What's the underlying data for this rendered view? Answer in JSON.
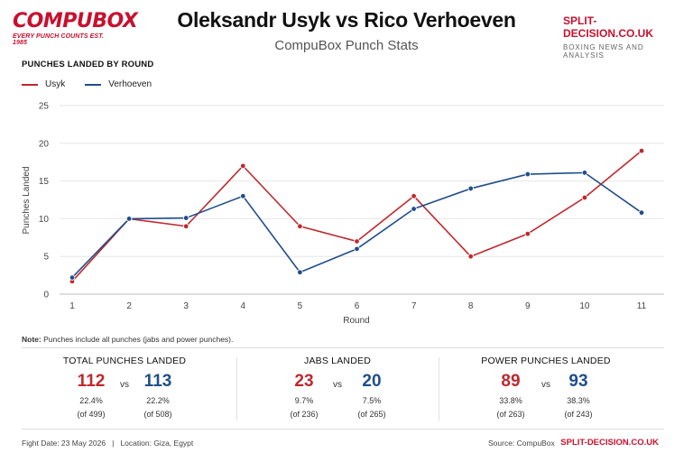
{
  "header": {
    "logo_text": "COMPUBOX",
    "logo_tagline": "EVERY PUNCH COUNTS  EST. 1985",
    "title": "Oleksandr Usyk vs Rico Verhoeven",
    "subtitle": "CompuBox Punch Stats",
    "site_name": "SPLIT-DECISION.CO.UK",
    "site_tagline": "BOXING NEWS AND ANALYSIS"
  },
  "colors": {
    "usyk": "#c0282d",
    "verhoeven": "#1f4e8c",
    "brand": "#c8102e"
  },
  "chart_heading": "PUNCHES LANDED BY ROUND",
  "chart_data": {
    "type": "line",
    "x": [
      1,
      2,
      3,
      4,
      5,
      6,
      7,
      8,
      9,
      10,
      11
    ],
    "series": [
      {
        "name": "Usyk",
        "values": [
          1.7,
          10,
          9,
          17,
          9,
          7,
          13,
          5,
          8,
          12.8,
          19
        ]
      },
      {
        "name": "Verhoeven",
        "values": [
          2.2,
          10,
          10.1,
          13,
          2.9,
          6,
          11.3,
          14,
          15.9,
          16.1,
          10.8
        ]
      }
    ],
    "xlabel": "Round",
    "ylabel": "Punches Landed",
    "ylim": [
      0,
      25
    ],
    "yticks": [
      0,
      5,
      10,
      15,
      20,
      25
    ],
    "grid": "horizontal",
    "legend": "top-left"
  },
  "note": {
    "label": "Note:",
    "text": " Punches include all punches (jabs and power punches)."
  },
  "stats": {
    "vs_label": "vs",
    "total": {
      "title": "TOTAL PUNCHES LANDED",
      "usyk": "112",
      "verhoeven": "113",
      "usyk_pct": "22.4%",
      "verhoeven_pct": "22.2%",
      "usyk_of": "(of 499)",
      "verhoeven_of": "(of 508)"
    },
    "jabs": {
      "title": "JABS LANDED",
      "usyk": "23",
      "verhoeven": "20",
      "usyk_pct": "9.7%",
      "verhoeven_pct": "7.5%",
      "usyk_of": "(of 236)",
      "verhoeven_of": "(of 265)"
    },
    "power": {
      "title": "POWER PUNCHES LANDED",
      "usyk": "89",
      "verhoeven": "93",
      "usyk_pct": "33.8%",
      "verhoeven_pct": "38.3%",
      "usyk_of": "(of 263)",
      "verhoeven_of": "(of 243)"
    }
  },
  "footer": {
    "left": "Fight Date: 23 May 2026   |   Location: Giza, Egypt",
    "source": "Source: CompuBox",
    "site": "SPLIT-DECISION.CO.UK"
  }
}
